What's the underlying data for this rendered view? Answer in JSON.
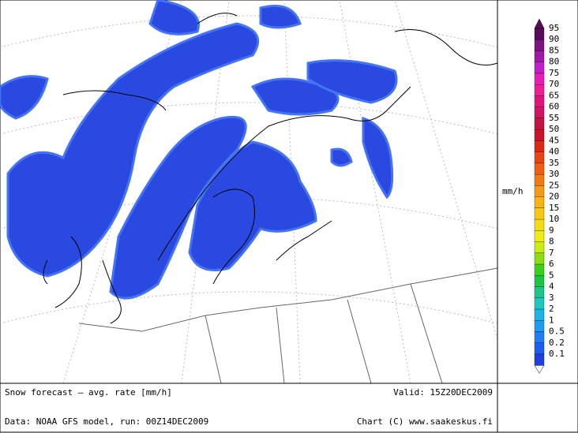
{
  "legend": {
    "unit": "mm/h",
    "levels": [
      {
        "value": 95,
        "color": "#5a0a5a"
      },
      {
        "value": 90,
        "color": "#7e1280"
      },
      {
        "value": 85,
        "color": "#a01aa8"
      },
      {
        "value": 80,
        "color": "#c41ec8"
      },
      {
        "value": 75,
        "color": "#e61eb4"
      },
      {
        "value": 70,
        "color": "#ee1e96"
      },
      {
        "value": 65,
        "color": "#e0147a"
      },
      {
        "value": 60,
        "color": "#d01460"
      },
      {
        "value": 55,
        "color": "#c41444"
      },
      {
        "value": 50,
        "color": "#cc1428"
      },
      {
        "value": 45,
        "color": "#dc2814"
      },
      {
        "value": 40,
        "color": "#ec4414"
      },
      {
        "value": 35,
        "color": "#f05e14"
      },
      {
        "value": 30,
        "color": "#f27a14"
      },
      {
        "value": 25,
        "color": "#f49a14"
      },
      {
        "value": 20,
        "color": "#f6b414"
      },
      {
        "value": 15,
        "color": "#f6c814"
      },
      {
        "value": 10,
        "color": "#f4dc14"
      },
      {
        "value": 9,
        "color": "#eeec14"
      },
      {
        "value": 8,
        "color": "#c8ec14"
      },
      {
        "value": 7,
        "color": "#8cdc14"
      },
      {
        "value": 6,
        "color": "#3cd01e"
      },
      {
        "value": 5,
        "color": "#1ec444"
      },
      {
        "value": 4,
        "color": "#1ec48a"
      },
      {
        "value": 3,
        "color": "#1ec8be"
      },
      {
        "value": 2,
        "color": "#1eb4e6"
      },
      {
        "value": 1,
        "color": "#1e9cf4"
      },
      {
        "value": 0.5,
        "color": "#1e7cf4"
      },
      {
        "value": 0.2,
        "color": "#1e5cf0"
      },
      {
        "value": 0.1,
        "color": "#1e40e0"
      }
    ]
  },
  "footer": {
    "title": "Snow forecast — avg. rate [mm/h]",
    "valid": "Valid: 15Z20DEC2009",
    "data": "Data: NOAA GFS model, run: 00Z14DEC2009",
    "credit": "Chart (C) www.saakeskus.fi"
  }
}
